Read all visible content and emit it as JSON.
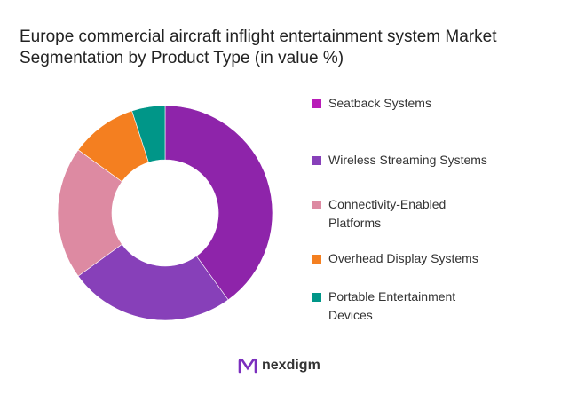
{
  "chart_data": {
    "type": "pie",
    "donut": true,
    "title": " Europe commercial aircraft inflight entertainment system Market Segmentation by Product Type (in value %)",
    "categories": [
      "Seatback Systems",
      "Wireless Streaming Systems",
      "Connectivity-Enabled Platforms",
      "Overhead Display Systems",
      "Portable Entertainment Devices"
    ],
    "values": [
      40,
      25,
      20,
      10,
      5
    ],
    "colors": [
      "#8E24AA",
      "#8740B9",
      "#DD8AA2",
      "#F47F20",
      "#009688"
    ],
    "legend_colors": [
      "#B81CB8",
      "#8740B9",
      "#DD8AA2",
      "#F47F20",
      "#009688"
    ],
    "legend_position": "right"
  },
  "logo": {
    "text": "nexdigm",
    "color": "#7B2FBE"
  }
}
